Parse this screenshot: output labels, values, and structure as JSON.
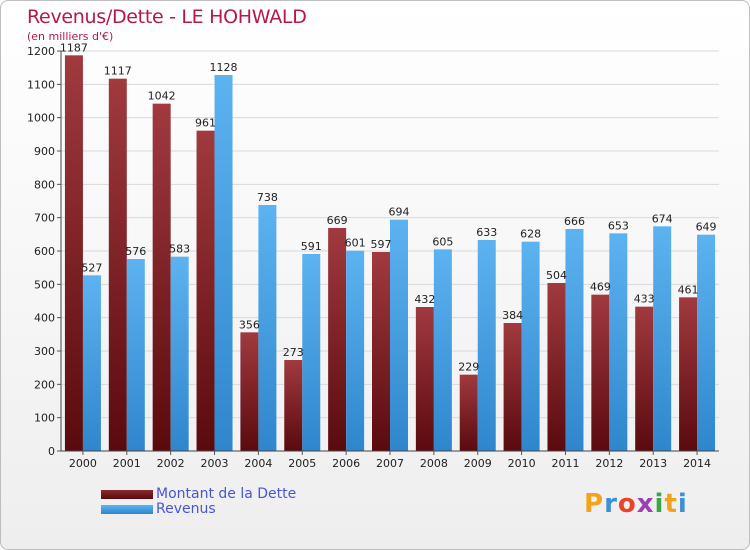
{
  "chart_data": {
    "type": "bar",
    "title": "Revenus/Dette - LE HOHWALD",
    "subtitle": "(en milliers d'€)",
    "categories": [
      "2000",
      "2001",
      "2002",
      "2003",
      "2004",
      "2005",
      "2006",
      "2007",
      "2008",
      "2009",
      "2010",
      "2011",
      "2012",
      "2013",
      "2014"
    ],
    "series": [
      {
        "name": "Montant de la Dette",
        "color": "#7a1a1f",
        "values": [
          1187,
          1117,
          1042,
          961,
          356,
          273,
          669,
          597,
          432,
          229,
          384,
          504,
          469,
          433,
          461
        ]
      },
      {
        "name": "Revenus",
        "color": "#4aa3e6",
        "values": [
          527,
          576,
          583,
          1128,
          738,
          591,
          601,
          694,
          605,
          633,
          628,
          666,
          653,
          674,
          649
        ]
      }
    ],
    "ylim": [
      0,
      1200
    ],
    "yticks": [
      0,
      100,
      200,
      300,
      400,
      500,
      600,
      700,
      800,
      900,
      1000,
      1100,
      1200
    ],
    "grid": true,
    "legend_position": "bottom-left"
  },
  "brand": {
    "letters": [
      "P",
      "r",
      "o",
      "x",
      "i",
      "t",
      "i"
    ],
    "colors": [
      "#f2a31b",
      "#3d8fd6",
      "#e8452b",
      "#9c3fb3",
      "#3aa64a",
      "#f2a31b",
      "#3d8fd6"
    ]
  }
}
